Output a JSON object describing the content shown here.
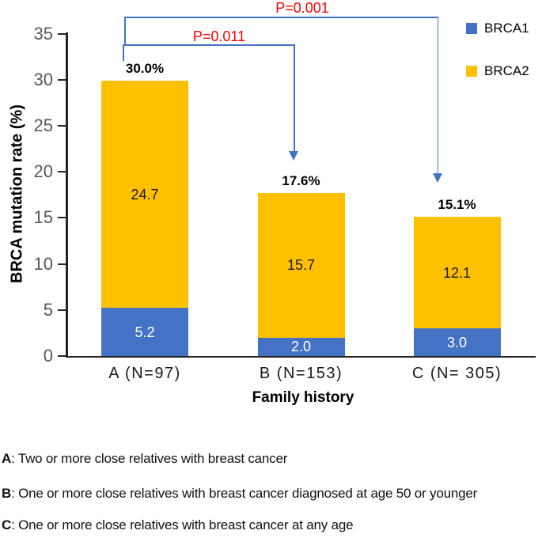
{
  "chart_data": {
    "type": "bar",
    "stacked": true,
    "categories": [
      "A (N=97)",
      "B (N=153)",
      "C (N= 305)"
    ],
    "series": [
      {
        "name": "BRCA1",
        "color": "#4472C4",
        "values": [
          5.2,
          2.0,
          3.0
        ],
        "label_color": "#FFFFFF"
      },
      {
        "name": "BRCA2",
        "color": "#FFC000",
        "values": [
          24.7,
          15.7,
          12.1
        ],
        "label_color": "#1a1a1a"
      }
    ],
    "segment_labels": [
      [
        "5.2",
        "2.0",
        "3.0"
      ],
      [
        "24.7",
        "15.7",
        "12.1"
      ]
    ],
    "totals": [
      "30.0%",
      "17.6%",
      "15.1%"
    ],
    "xlabel": "Family history",
    "ylabel": "BRCA mutation rate (%)",
    "ylim": [
      0,
      35
    ],
    "ytick_step": 5,
    "ytick_labels": [
      "0",
      "5",
      "10",
      "15",
      "20",
      "25",
      "30",
      "35"
    ],
    "grid": false,
    "legend_position": "top-right",
    "annotations": [
      {
        "label": "P=0.001",
        "from": "A",
        "to": "C",
        "color": "#FF0000"
      },
      {
        "label": "P=0.011",
        "from": "A",
        "to": "B",
        "color": "#FF0000"
      }
    ]
  },
  "legend": {
    "items": [
      {
        "label": "BRCA1",
        "color": "#4472C4"
      },
      {
        "label": "BRCA2",
        "color": "#FFC000"
      }
    ]
  },
  "footnotes": [
    {
      "key": "A",
      "text": ": Two or more close relatives with breast cancer"
    },
    {
      "key": "B",
      "text": ": One or more close relatives with breast cancer diagnosed at age 50 or younger"
    },
    {
      "key": "C",
      "text": ": One or more close relatives with breast cancer at any age"
    }
  ],
  "colors": {
    "bracket": "#4472C4",
    "axis": "#262626",
    "tick_label": "#595959",
    "p_value": "#FF0000",
    "brca1": "#4472C4",
    "brca2": "#FFC000"
  }
}
